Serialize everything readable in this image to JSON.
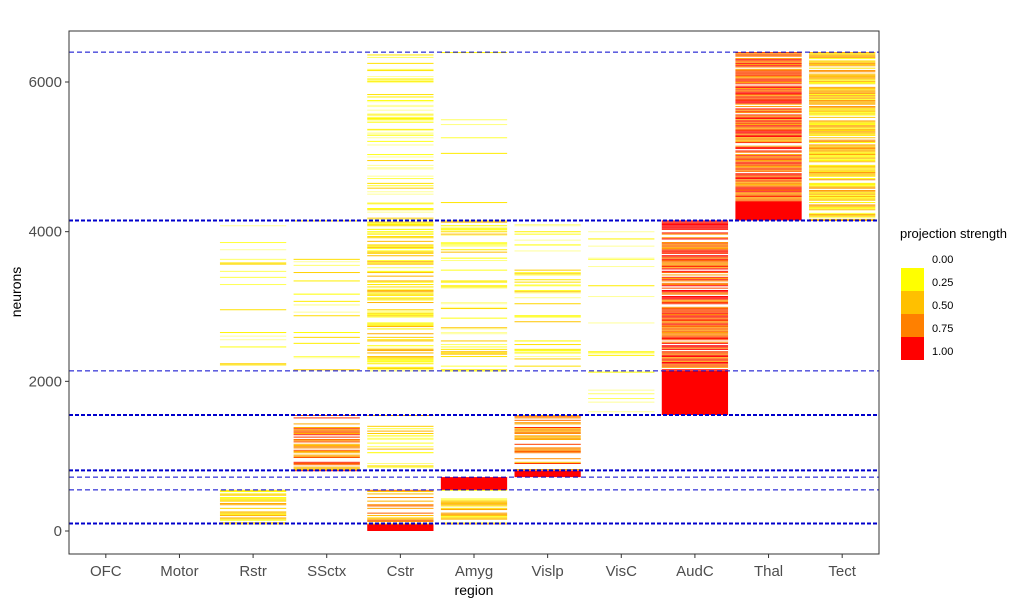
{
  "chart_data": {
    "type": "heatmap",
    "xlabel": "region",
    "ylabel": "neurons",
    "categories": [
      "OFC",
      "Motor",
      "Rstr",
      "SSctx",
      "Cstr",
      "Amyg",
      "Vislp",
      "VisC",
      "AudC",
      "Thal",
      "Tect"
    ],
    "y_ticks": [
      0,
      2000,
      4000,
      6000
    ],
    "y_tick_labels": [
      "0",
      "2000",
      "4000",
      "6000"
    ],
    "ylim": [
      -40,
      6700
    ],
    "grid": false,
    "legend": {
      "title": "projection strength",
      "position": "right",
      "breaks": [
        0.0,
        0.25,
        0.5,
        0.75,
        1.0
      ],
      "break_labels": [
        "0.00",
        "0.25",
        "0.50",
        "0.75",
        "1.00"
      ],
      "colors": [
        "#FFFFFF",
        "#FFFF00",
        "#FFC000",
        "#FF8000",
        "#FF0000"
      ]
    },
    "cluster_boundaries": [
      {
        "y": 6400,
        "style": "thin"
      },
      {
        "y": 4150,
        "style": "thick"
      },
      {
        "y": 2140,
        "style": "thin"
      },
      {
        "y": 1550,
        "style": "thick"
      },
      {
        "y": 810,
        "style": "thick"
      },
      {
        "y": 720,
        "style": "thin"
      },
      {
        "y": 550,
        "style": "thin"
      },
      {
        "y": 100,
        "style": "thick"
      }
    ],
    "blocks": [
      {
        "region": "Cstr",
        "y0": 0,
        "y1": 100,
        "value": 1.0
      },
      {
        "region": "Cstr",
        "y0": 100,
        "y1": 550,
        "value": 0.6,
        "density": 0.6
      },
      {
        "region": "Rstr",
        "y0": 100,
        "y1": 550,
        "value": 0.4,
        "density": 0.6
      },
      {
        "region": "Amyg",
        "y0": 100,
        "y1": 550,
        "value": 0.4,
        "density": 0.6
      },
      {
        "region": "Amyg",
        "y0": 550,
        "y1": 720,
        "value": 1.0
      },
      {
        "region": "Vislp",
        "y0": 720,
        "y1": 810,
        "value": 1.0
      },
      {
        "region": "SSctx",
        "y0": 810,
        "y1": 1550,
        "value": 0.7,
        "density": 0.7
      },
      {
        "region": "Vislp",
        "y0": 810,
        "y1": 1550,
        "value": 0.7,
        "density": 0.7
      },
      {
        "region": "Cstr",
        "y0": 810,
        "y1": 1550,
        "value": 0.35,
        "density": 0.4
      },
      {
        "region": "AudC",
        "y0": 1550,
        "y1": 2140,
        "value": 1.0
      },
      {
        "region": "AudC",
        "y0": 2140,
        "y1": 4150,
        "value": 0.85,
        "density": 0.85
      },
      {
        "region": "Cstr",
        "y0": 2140,
        "y1": 4150,
        "value": 0.35,
        "density": 0.6
      },
      {
        "region": "Amyg",
        "y0": 2140,
        "y1": 4150,
        "value": 0.3,
        "density": 0.35
      },
      {
        "region": "Vislp",
        "y0": 2140,
        "y1": 4150,
        "value": 0.25,
        "density": 0.25
      },
      {
        "region": "Rstr",
        "y0": 2140,
        "y1": 4150,
        "value": 0.2,
        "density": 0.15
      },
      {
        "region": "SSctx",
        "y0": 2140,
        "y1": 4150,
        "value": 0.2,
        "density": 0.12
      },
      {
        "region": "VisC",
        "y0": 1550,
        "y1": 4150,
        "value": 0.15,
        "density": 0.12
      },
      {
        "region": "Thal",
        "y0": 4150,
        "y1": 4400,
        "value": 1.0
      },
      {
        "region": "Thal",
        "y0": 4400,
        "y1": 6400,
        "value": 0.8,
        "density": 0.9
      },
      {
        "region": "Tect",
        "y0": 4150,
        "y1": 6400,
        "value": 0.45,
        "density": 0.8
      },
      {
        "region": "Cstr",
        "y0": 4150,
        "y1": 6400,
        "value": 0.2,
        "density": 0.35
      },
      {
        "region": "Amyg",
        "y0": 4150,
        "y1": 6400,
        "value": 0.15,
        "density": 0.08
      }
    ]
  }
}
